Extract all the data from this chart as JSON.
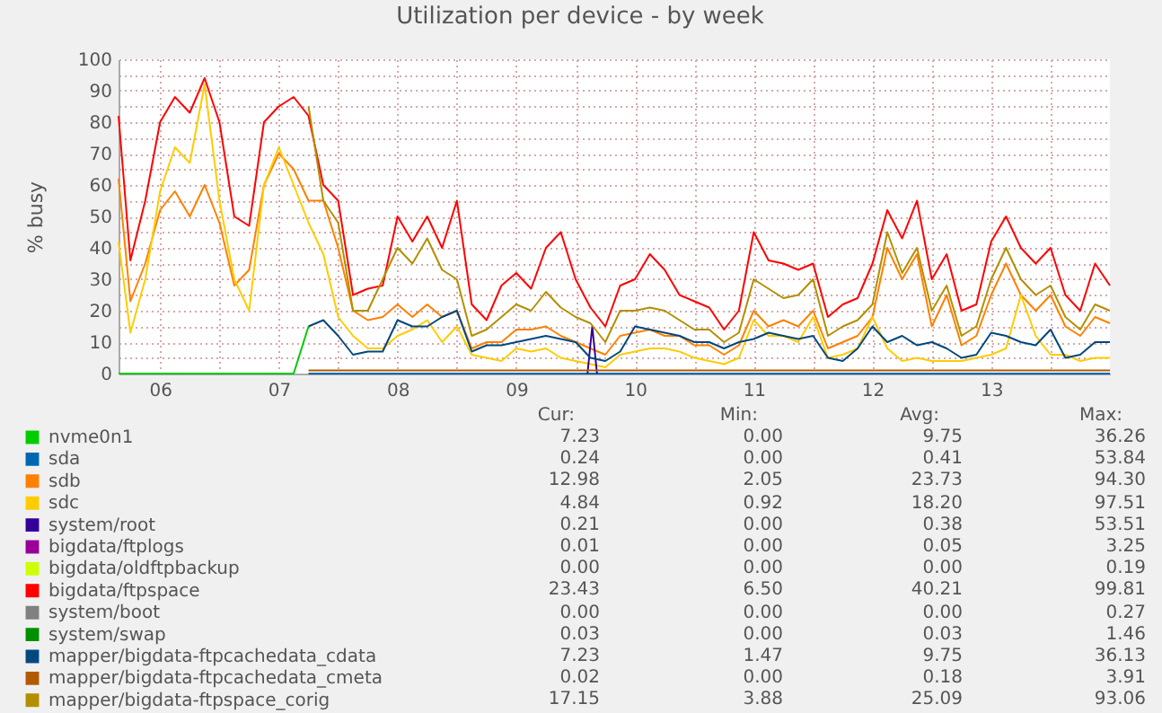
{
  "chart_data": {
    "type": "line",
    "title": "Utilization per device - by week",
    "ylabel": "% busy",
    "x": [
      5.65,
      5.75,
      5.875,
      6.0,
      6.125,
      6.25,
      6.375,
      6.5,
      6.625,
      6.75,
      6.875,
      7.0,
      7.125,
      7.25,
      7.375,
      7.5,
      7.625,
      7.75,
      7.875,
      8.0,
      8.125,
      8.25,
      8.375,
      8.5,
      8.625,
      8.75,
      8.875,
      9.0,
      9.125,
      9.25,
      9.375,
      9.5,
      9.625,
      9.75,
      9.875,
      10.0,
      10.125,
      10.25,
      10.375,
      10.5,
      10.625,
      10.75,
      10.875,
      11.0,
      11.125,
      11.25,
      11.375,
      11.5,
      11.625,
      11.75,
      11.875,
      12.0,
      12.125,
      12.25,
      12.375,
      12.5,
      12.625,
      12.75,
      12.875,
      13.0,
      13.125,
      13.25,
      13.375,
      13.5,
      13.625,
      13.75,
      13.875,
      14.0
    ],
    "series": [
      {
        "name": "nvme0n1",
        "color": "#00cc00",
        "x": [
          5.65,
          5.75,
          5.875,
          6.0,
          6.125,
          6.25,
          6.375,
          6.5,
          6.625,
          6.75,
          6.875,
          7.0,
          7.125,
          7.25
        ],
        "values": [
          0,
          0,
          0,
          0,
          0,
          0,
          0,
          0,
          0,
          0,
          0,
          0,
          0,
          15
        ]
      },
      {
        "name": "sda",
        "color": "#0066b3",
        "x": [
          7.25,
          14.0
        ],
        "values": [
          0,
          0
        ]
      },
      {
        "name": "sdb",
        "color": "#ff8000",
        "values": [
          62,
          23,
          35,
          52,
          58,
          50,
          60,
          48,
          28,
          33,
          60,
          70,
          65,
          55,
          55,
          40,
          20,
          17,
          18,
          22,
          18,
          22,
          18,
          20,
          8,
          10,
          10,
          14,
          14,
          15,
          12,
          10,
          8,
          6,
          12,
          13,
          14,
          12,
          12,
          9,
          9,
          6,
          9,
          20,
          15,
          17,
          15,
          20,
          8,
          10,
          12,
          18,
          40,
          30,
          38,
          15,
          25,
          9,
          12,
          25,
          35,
          25,
          20,
          25,
          15,
          12,
          18,
          16
        ]
      },
      {
        "name": "sdc",
        "color": "#ffcc00",
        "values": [
          42,
          13,
          30,
          58,
          72,
          67,
          92,
          55,
          30,
          20,
          60,
          72,
          60,
          48,
          38,
          18,
          12,
          8,
          8,
          12,
          14,
          17,
          10,
          15,
          6,
          5,
          4,
          8,
          7,
          8,
          5,
          4,
          3,
          2,
          6,
          7,
          8,
          8,
          7,
          5,
          4,
          3,
          5,
          17,
          12,
          12,
          10,
          18,
          5,
          6,
          8,
          18,
          8,
          4,
          5,
          4,
          4,
          4,
          5,
          6,
          8,
          25,
          12,
          6,
          6,
          4,
          5,
          5
        ]
      },
      {
        "name": "system/root",
        "color": "#330099",
        "x": [
          9.6,
          9.64,
          9.68
        ],
        "values": [
          0,
          15,
          0
        ]
      },
      {
        "name": "bigdata/ftplogs",
        "color": "#990099",
        "values": [
          null,
          null,
          null,
          null,
          null,
          null,
          null,
          null,
          null,
          null,
          null,
          null,
          null,
          null,
          null,
          null,
          null,
          null,
          null,
          null,
          null,
          null,
          null,
          null,
          null,
          null,
          null,
          null,
          null,
          null,
          null,
          null,
          null,
          null,
          null,
          null,
          null,
          null,
          null,
          null,
          null,
          null,
          null,
          null,
          null,
          null,
          null,
          null,
          null,
          null,
          null,
          null,
          null,
          null,
          null,
          null,
          null,
          null,
          null,
          null,
          null,
          null,
          null,
          null,
          null,
          null,
          null,
          null
        ]
      },
      {
        "name": "bigdata/oldftpbackup",
        "color": "#ccff00",
        "values": [
          null,
          null,
          null,
          null,
          null,
          null,
          null,
          null,
          null,
          null,
          null,
          null,
          null,
          null,
          null,
          null,
          null,
          null,
          null,
          null,
          null,
          null,
          null,
          null,
          null,
          null,
          null,
          null,
          null,
          null,
          null,
          null,
          null,
          null,
          null,
          null,
          null,
          null,
          null,
          null,
          null,
          null,
          null,
          null,
          null,
          null,
          null,
          null,
          null,
          null,
          null,
          null,
          null,
          null,
          null,
          null,
          null,
          null,
          null,
          null,
          null,
          null,
          null,
          null,
          null,
          null,
          null,
          null
        ]
      },
      {
        "name": "bigdata/ftpspace",
        "color": "#ff0000",
        "values": [
          82,
          36,
          55,
          80,
          88,
          83,
          94,
          80,
          50,
          47,
          80,
          85,
          88,
          82,
          60,
          55,
          25,
          27,
          28,
          50,
          42,
          50,
          40,
          55,
          22,
          17,
          28,
          32,
          27,
          40,
          45,
          30,
          21,
          15,
          28,
          30,
          38,
          33,
          25,
          23,
          21,
          14,
          20,
          45,
          36,
          35,
          33,
          35,
          18,
          22,
          24,
          35,
          52,
          43,
          55,
          30,
          38,
          20,
          22,
          42,
          50,
          40,
          35,
          40,
          25,
          20,
          35,
          28
        ]
      },
      {
        "name": "system/boot",
        "color": "#808080",
        "values": [
          null,
          null,
          null,
          null,
          null,
          null,
          null,
          null,
          null,
          null,
          null,
          null,
          null,
          null,
          null,
          null,
          null,
          null,
          null,
          null,
          null,
          null,
          null,
          null,
          null,
          null,
          null,
          null,
          null,
          null,
          null,
          null,
          null,
          null,
          null,
          null,
          null,
          null,
          null,
          null,
          null,
          null,
          null,
          null,
          null,
          null,
          null,
          null,
          null,
          null,
          null,
          null,
          null,
          null,
          null,
          null,
          null,
          null,
          null,
          null,
          null,
          null,
          null,
          null,
          null,
          null,
          null,
          null
        ]
      },
      {
        "name": "system/swap",
        "color": "#008f00",
        "values": [
          null,
          null,
          null,
          null,
          null,
          null,
          null,
          null,
          null,
          null,
          null,
          null,
          null,
          null,
          null,
          null,
          null,
          null,
          null,
          null,
          null,
          null,
          null,
          null,
          null,
          null,
          null,
          null,
          null,
          null,
          null,
          null,
          null,
          null,
          null,
          null,
          null,
          null,
          null,
          null,
          null,
          null,
          null,
          null,
          null,
          null,
          null,
          null,
          null,
          null,
          null,
          null,
          null,
          null,
          null,
          null,
          null,
          null,
          null,
          null,
          null,
          null,
          null,
          null,
          null,
          null,
          null,
          null
        ]
      },
      {
        "name": "mapper/bigdata-ftpcachedata_cdata",
        "color": "#00487d",
        "values": [
          null,
          null,
          null,
          null,
          null,
          null,
          null,
          null,
          null,
          null,
          null,
          null,
          null,
          15,
          17,
          12,
          6,
          7,
          7,
          17,
          15,
          15,
          18,
          20,
          7,
          9,
          9,
          10,
          11,
          12,
          11,
          10,
          5,
          4,
          7,
          15,
          14,
          13,
          12,
          10,
          10,
          8,
          10,
          11,
          13,
          12,
          11,
          12,
          5,
          4,
          8,
          15,
          10,
          12,
          9,
          10,
          8,
          5,
          6,
          13,
          12,
          10,
          9,
          14,
          5,
          6,
          10,
          10
        ]
      },
      {
        "name": "mapper/bigdata-ftpcachedata_cmeta",
        "color": "#b35a00",
        "x": [
          7.25,
          14.0
        ],
        "values": [
          1,
          1
        ]
      },
      {
        "name": "mapper/bigdata-ftpspace_corig",
        "color": "#b38f00",
        "values": [
          null,
          null,
          null,
          null,
          null,
          null,
          null,
          null,
          null,
          null,
          null,
          null,
          null,
          85,
          55,
          48,
          20,
          20,
          30,
          40,
          35,
          43,
          33,
          30,
          12,
          14,
          18,
          22,
          20,
          26,
          21,
          18,
          16,
          10,
          20,
          20,
          21,
          20,
          17,
          14,
          14,
          10,
          13,
          30,
          27,
          24,
          25,
          30,
          12,
          15,
          17,
          22,
          45,
          32,
          40,
          20,
          28,
          12,
          15,
          30,
          40,
          30,
          25,
          28,
          18,
          14,
          22,
          20
        ]
      }
    ],
    "xlim": [
      5.65,
      14.0
    ],
    "xticks": [
      {
        "value": 6,
        "label": "06"
      },
      {
        "value": 6.5,
        "label": null
      },
      {
        "value": 7,
        "label": "07"
      },
      {
        "value": 7.5,
        "label": null
      },
      {
        "value": 8,
        "label": "08"
      },
      {
        "value": 8.5,
        "label": null
      },
      {
        "value": 9,
        "label": "09"
      },
      {
        "value": 9.5,
        "label": null
      },
      {
        "value": 10,
        "label": "10"
      },
      {
        "value": 10.5,
        "label": null
      },
      {
        "value": 11,
        "label": "11"
      },
      {
        "value": 11.5,
        "label": null
      },
      {
        "value": 12,
        "label": "12"
      },
      {
        "value": 12.5,
        "label": null
      },
      {
        "value": 13,
        "label": "13"
      },
      {
        "value": 13.5,
        "label": null
      }
    ],
    "ylim": [
      0,
      100
    ],
    "yticks": [
      0,
      {
        "value": 5,
        "label": null
      },
      10,
      {
        "value": 15,
        "label": null
      },
      20,
      {
        "value": 25,
        "label": null
      },
      30,
      {
        "value": 35,
        "label": null
      },
      40,
      {
        "value": 45,
        "label": null
      },
      50,
      {
        "value": 55,
        "label": null
      },
      60,
      {
        "value": 65,
        "label": null
      },
      70,
      {
        "value": 75,
        "label": null
      },
      80,
      {
        "value": 85,
        "label": null
      },
      90,
      {
        "value": 95,
        "label": null
      },
      100
    ],
    "grid": true,
    "legend": "bottom",
    "annotations": [
      "Cur:",
      "Min:",
      "Avg:",
      "Max:",
      "7.23",
      "0.00",
      "9.75",
      "36.26",
      "0.24",
      "0.00",
      "0.41",
      "53.84",
      "12.98",
      "2.05",
      "23.73",
      "94.30",
      "4.84",
      "0.92",
      "18.20",
      "97.51",
      "0.21",
      "0.00",
      "0.38",
      "53.51",
      "0.01",
      "0.00",
      "0.05",
      "3.25",
      "0.00",
      "0.00",
      "0.00",
      "0.19",
      "23.43",
      "6.50",
      "40.21",
      "99.81",
      "0.00",
      "0.00",
      "0.00",
      "0.27",
      "0.03",
      "0.00",
      "0.03",
      "1.46",
      "7.23",
      "1.47",
      "9.75",
      "36.13",
      "0.02",
      "0.00",
      "0.18",
      "3.91",
      "17.15",
      "3.88",
      "25.09",
      "93.06"
    ]
  }
}
